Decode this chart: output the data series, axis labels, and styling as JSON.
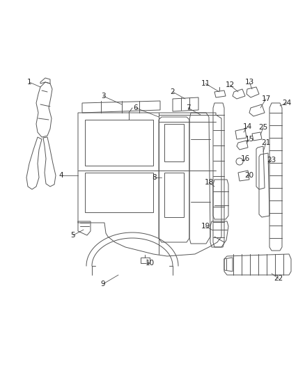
{
  "bg_color": "#ffffff",
  "lc": "#555555",
  "lw": 0.7,
  "figsize": [
    4.38,
    5.33
  ],
  "dpi": 100
}
